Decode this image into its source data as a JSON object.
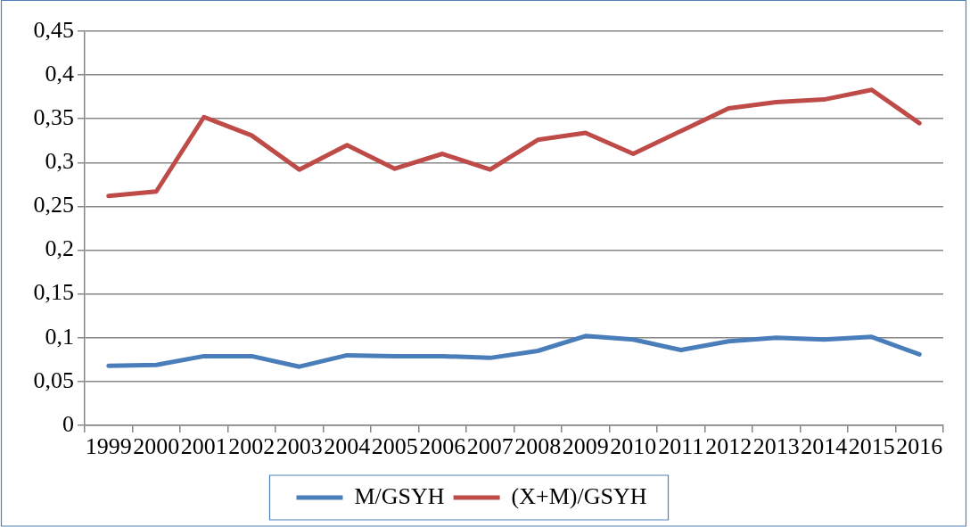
{
  "chart_data": {
    "type": "line",
    "categories": [
      "1999",
      "2000",
      "2001",
      "2002",
      "2003",
      "2004",
      "2005",
      "2006",
      "2007",
      "2008",
      "2009",
      "2010",
      "2011",
      "2012",
      "2013",
      "2014",
      "2015",
      "2016"
    ],
    "series": [
      {
        "name": "M/GSYH",
        "color": "#4a7ebb",
        "values": [
          0.068,
          0.069,
          0.079,
          0.079,
          0.067,
          0.08,
          0.079,
          0.079,
          0.077,
          0.085,
          0.102,
          0.098,
          0.086,
          0.096,
          0.1,
          0.098,
          0.101,
          0.081
        ]
      },
      {
        "name": "(X+M)/GSYH",
        "color": "#be4b48",
        "values": [
          0.262,
          0.267,
          0.352,
          0.331,
          0.292,
          0.32,
          0.293,
          0.31,
          0.292,
          0.326,
          0.334,
          0.31,
          0.336,
          0.362,
          0.369,
          0.372,
          0.383,
          0.345
        ]
      }
    ],
    "ylim": [
      0,
      0.45
    ],
    "yticks": [
      0,
      {
        "value": 0.05,
        "label": "0,05"
      },
      {
        "value": 0.1,
        "label": "0,1"
      },
      {
        "value": 0.15,
        "label": "0,15"
      },
      {
        "value": 0.2,
        "label": "0,2"
      },
      {
        "value": 0.25,
        "label": "0,25"
      },
      {
        "value": 0.3,
        "label": "0,3"
      },
      {
        "value": 0.35,
        "label": "0,35"
      },
      {
        "value": 0.4,
        "label": "0,4"
      },
      {
        "value": 0.45,
        "label": "0,45"
      }
    ],
    "grid": "y",
    "legend": "bottom",
    "marker": "none",
    "line_style": "solid"
  }
}
